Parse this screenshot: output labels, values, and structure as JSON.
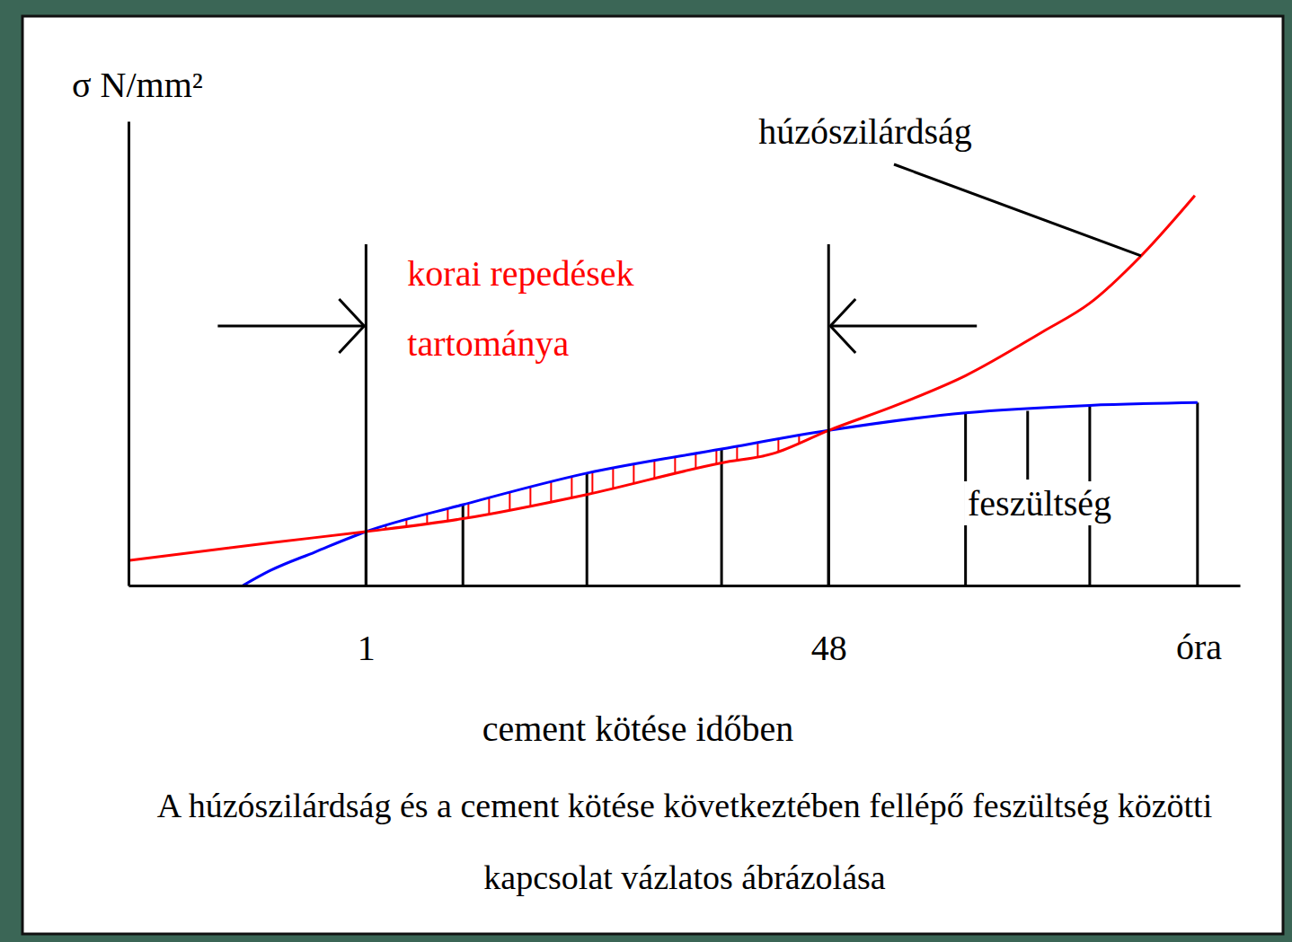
{
  "chart_data": {
    "type": "line",
    "title": "A húzószilárdság és a cement kötése következtében fellépő feszültség közötti kapcsolat vázlatos ábrázolása",
    "xlabel": "cement kötése időben",
    "x_unit": "óra",
    "ylabel": "σ N/mm²",
    "log": "x",
    "grid": false,
    "tick_labels": "x",
    "xlim": [
      0.137,
      1500
    ],
    "xticks": [
      1,
      48
    ],
    "ylim": [
      0,
      5
    ],
    "series": [
      {
        "name": "húzószilárdság",
        "color": "#ff0000",
        "x": [
          0.138,
          0.448,
          1,
          2.25,
          6.35,
          19.6,
          30.1,
          48,
          86,
          151,
          287,
          427,
          656,
          1029
        ],
        "values": [
          0.27,
          0.46,
          0.58,
          0.72,
          0.98,
          1.32,
          1.42,
          1.67,
          1.95,
          2.26,
          2.73,
          3.04,
          3.55,
          4.2
        ]
      },
      {
        "name": "feszültség",
        "color": "#0000ff",
        "x": [
          0.357,
          0.448,
          0.652,
          1,
          2.25,
          6.35,
          19.6,
          48,
          151,
          427,
          1052
        ],
        "values": [
          0,
          0.16,
          0.36,
          0.58,
          0.87,
          1.21,
          1.47,
          1.67,
          1.86,
          1.94,
          1.97
        ]
      }
    ],
    "annotations": [
      {
        "text": "korai repedések tartománya",
        "x_range": [
          1,
          48
        ],
        "color": "#ff0000"
      }
    ]
  }
}
